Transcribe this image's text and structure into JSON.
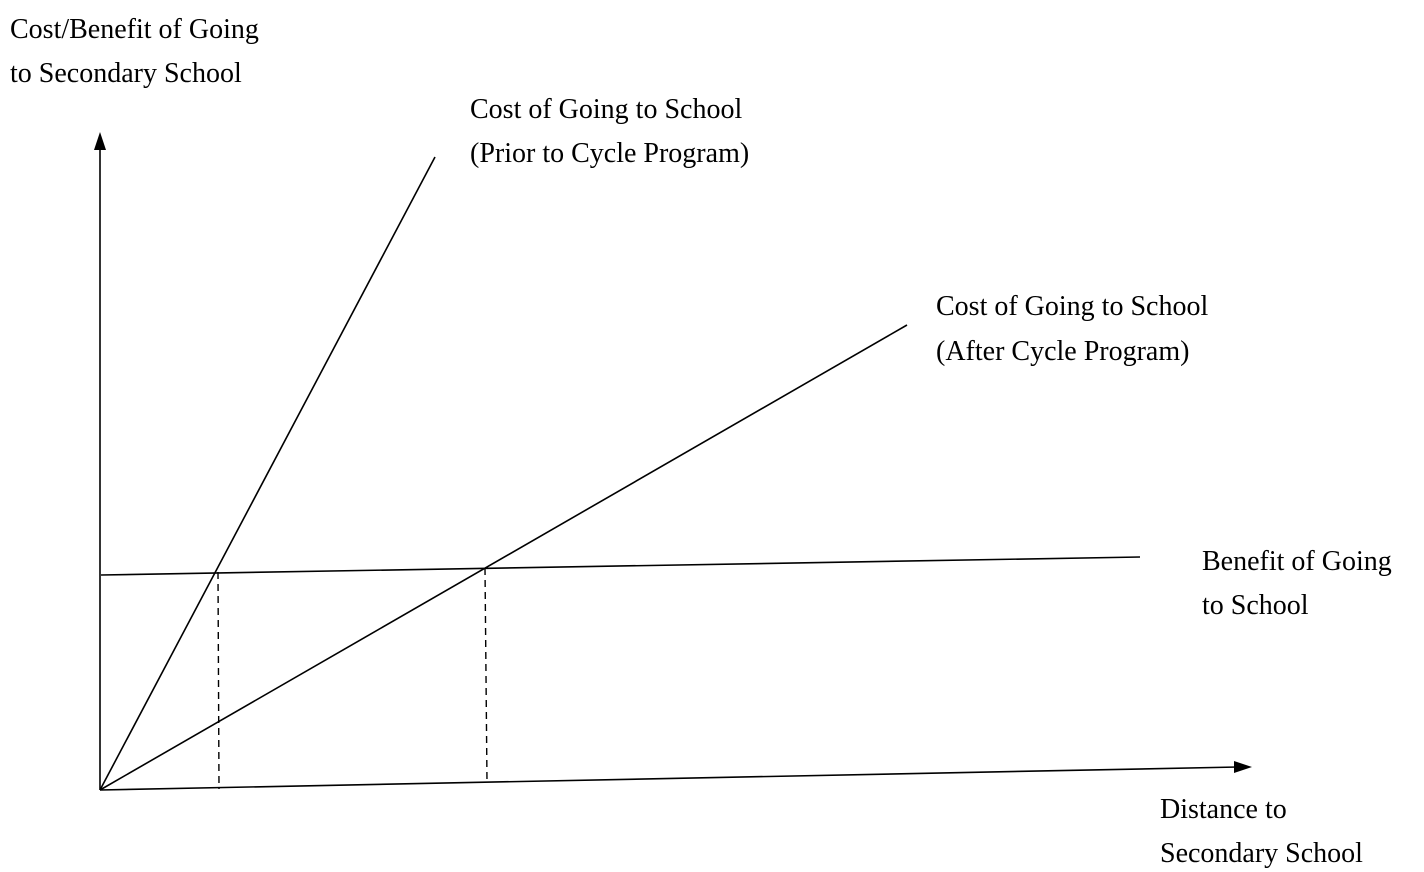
{
  "y_axis_label": [
    "Cost/Benefit of Going",
    "to Secondary School"
  ],
  "x_axis_label": [
    "Distance to",
    "Secondary School"
  ],
  "curves": [
    {
      "label": [
        "Cost of Going to School",
        "(Prior to Cycle Program)"
      ]
    },
    {
      "label": [
        "Cost of Going to School",
        "(After Cycle Program)"
      ]
    },
    {
      "label": [
        "Benefit of Going",
        "to School"
      ]
    }
  ]
}
